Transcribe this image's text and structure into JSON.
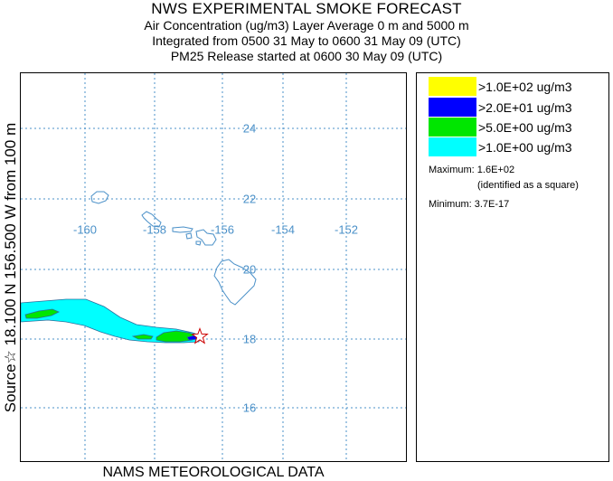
{
  "header": {
    "title": "NWS EXPERIMENTAL SMOKE FORECAST",
    "line2": "Air Concentration (ug/m3) Layer Average    0 m and  5000 m",
    "line3": "Integrated from 0500 31 May to 0600 31 May 09 (UTC)",
    "line4": "PM25 Release started at 0600 30 May 09 (UTC)"
  },
  "side_label": "Source☆ 18.100 N 156.500  W    from  100 m",
  "map": {
    "latitude_labels": [
      "24",
      "22",
      "20",
      "18",
      "16"
    ],
    "longitude_labels": [
      "-160",
      "-158",
      "-156",
      "-154",
      "-152"
    ],
    "grid_color": "#4a90c8",
    "coast_color": "#4a90c8",
    "source_marker": "star-icon"
  },
  "legend": {
    "entries": [
      {
        "label": ">1.0E+02 ug/m3",
        "color": "#ffff00"
      },
      {
        "label": ">2.0E+01 ug/m3",
        "color": "#0000ff"
      },
      {
        "label": ">5.0E+00 ug/m3",
        "color": "#00e600"
      },
      {
        "label": ">1.0E+00 ug/m3",
        "color": "#00ffff"
      }
    ],
    "maximum": "Maximum: 1.6E+02",
    "maximum_note": "(identified as a square)",
    "minimum": "Minimum: 3.7E-17"
  },
  "footer": "NAMS METEOROLOGICAL DATA"
}
